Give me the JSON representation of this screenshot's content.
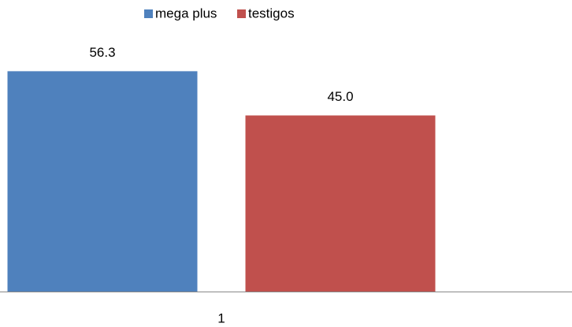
{
  "chart_data": {
    "type": "bar",
    "categories": [
      "1"
    ],
    "series": [
      {
        "name": "mega plus",
        "color": "#4f81bd",
        "values": [
          56.3
        ],
        "value_labels": [
          "56.3"
        ]
      },
      {
        "name": "testigos",
        "color": "#c0504d",
        "values": [
          45
        ],
        "value_labels": [
          "45.0"
        ]
      }
    ],
    "ylim": [
      0,
      60
    ],
    "legend": "top"
  }
}
